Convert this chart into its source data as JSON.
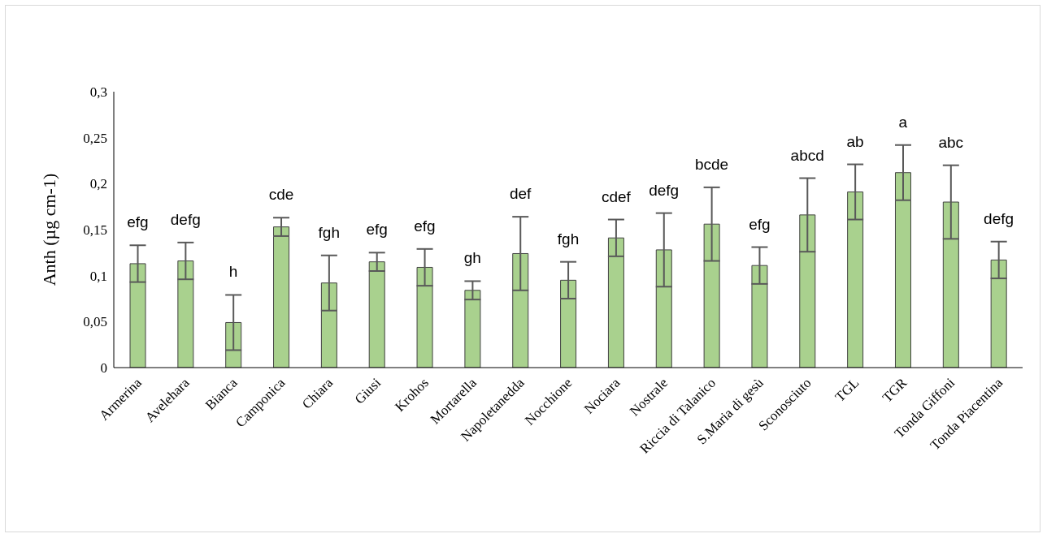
{
  "chart_data": {
    "type": "bar",
    "ylabel": "Anth (µg cm-1)",
    "categories": [
      "Armerina",
      "Avelehara",
      "Bianca",
      "Camponica",
      "Chiara",
      "Giusi",
      "Krohos",
      "Mortarella",
      "Napoletanedda",
      "Nocchione",
      "Nociara",
      "Nostrale",
      "Riccia di Talanico",
      "S.Maria di gesù",
      "Sconosciuto",
      "TGL",
      "TGR",
      "Tonda Giffoni",
      "Tonda Piacentina"
    ],
    "values": [
      0.113,
      0.116,
      0.049,
      0.153,
      0.092,
      0.115,
      0.109,
      0.084,
      0.124,
      0.095,
      0.141,
      0.128,
      0.156,
      0.111,
      0.166,
      0.191,
      0.212,
      0.18,
      0.117
    ],
    "errors": [
      0.02,
      0.02,
      0.03,
      0.01,
      0.03,
      0.01,
      0.02,
      0.01,
      0.04,
      0.02,
      0.02,
      0.04,
      0.04,
      0.02,
      0.04,
      0.03,
      0.03,
      0.04,
      0.02
    ],
    "color": "#a9d18e",
    "ylim": [
      0,
      0.3
    ],
    "yticks": [
      {
        "value": 0,
        "label": "0"
      },
      {
        "value": 0.05,
        "label": "0,05"
      },
      {
        "value": 0.1,
        "label": "0,1"
      },
      {
        "value": 0.15,
        "label": "0,15"
      },
      {
        "value": 0.2,
        "label": "0,2"
      },
      {
        "value": 0.25,
        "label": "0,25"
      },
      {
        "value": 0.3,
        "label": "0,3"
      }
    ],
    "grid": false,
    "legend": false,
    "annotations": [
      "efg",
      "defg",
      "h",
      "cde",
      "fgh",
      "efg",
      "efg",
      "gh",
      "def",
      "fgh",
      "cdef",
      "defg",
      "bcde",
      "efg",
      "abcd",
      "ab",
      "a",
      "abc",
      "defg"
    ]
  }
}
